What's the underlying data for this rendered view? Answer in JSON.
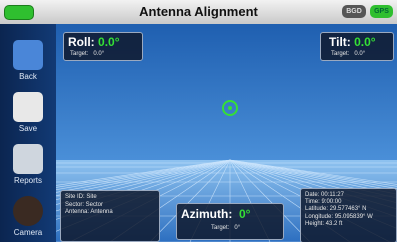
{
  "header": {
    "title": "Antenna Alignment",
    "indicators": [
      "BGD",
      "GPS"
    ]
  },
  "sidebar": {
    "buttons": [
      "Back",
      "Save",
      "Reports",
      "Camera"
    ]
  },
  "roll": {
    "label": "Roll:",
    "value": "0.0°",
    "target_label": "Target:",
    "target": "0.0°"
  },
  "tilt": {
    "label": "Tilt:",
    "value": "0.0°",
    "target_label": "Target:",
    "target": "0.0°"
  },
  "azimuth": {
    "label": "Azimuth:",
    "value": "0°",
    "target_label": "Target:",
    "target": "0°"
  },
  "site_info": [
    "Site ID: Site",
    "Sector: Sector",
    "Antenna: Antenna"
  ],
  "gps_info": [
    "Date: 00:11:27",
    "Time: 9:00:00",
    "Latitude: 29.577463° N",
    "Longitude: 95.095839° W",
    "Height: 43.2 ft"
  ]
}
